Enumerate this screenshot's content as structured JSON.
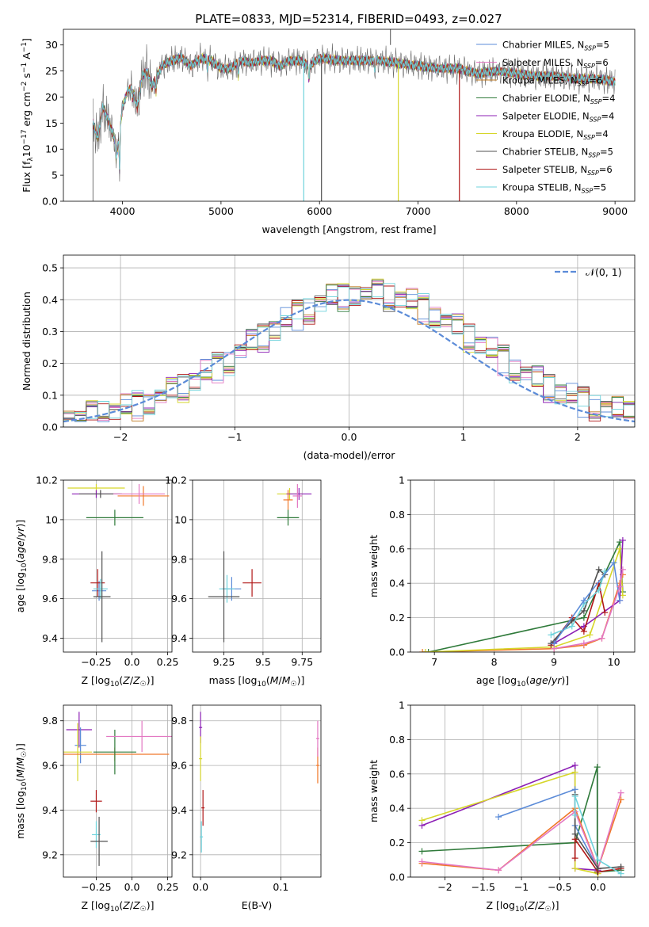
{
  "colors": {
    "Chabrier MILES": "#5b8bd8",
    "Salpeter MILES": "#e377c2",
    "Kroupa MILES": "#c07a20",
    "Chabrier ELODIE": "#2f7a3a",
    "Salpeter ELODIE": "#8c1fb5",
    "Kroupa ELODIE": "#d6d62a",
    "Chabrier STELIB": "#505050",
    "Salpeter STELIB": "#b01818",
    "Kroupa STELIB": "#6fd3dc",
    "orange": "#f0782a",
    "teal": "#5b7f6a",
    "purple": "#8c1fb5"
  },
  "chart_data": [
    {
      "type": "line",
      "title": "PLATE=0833, MJD=52314, FIBERID=0493, z=0.027",
      "xlabel": "wavelength [Angstrom, rest frame]",
      "ylabel": "Flux [f_λ10^-17 erg cm^-2 s^-1 A^-1]",
      "xlim": [
        3400,
        9200
      ],
      "ylim": [
        0,
        33
      ],
      "xticks": [
        4000,
        5000,
        6000,
        7000,
        8000,
        9000
      ],
      "yticks": [
        0,
        5,
        10,
        15,
        20,
        25,
        30
      ],
      "grid": false,
      "legend_position": "top-right",
      "legend": [
        {
          "base": "Chabrier MILES, N",
          "sub": "SSP",
          "tail": "=5"
        },
        {
          "base": "Salpeter MILES, N",
          "sub": "SSP",
          "tail": "=6"
        },
        {
          "base": "Kroupa MILES, N",
          "sub": "SSP",
          "tail": "=6"
        },
        {
          "base": "Chabrier ELODIE, N",
          "sub": "SSP",
          "tail": "=4"
        },
        {
          "base": "Salpeter ELODIE, N",
          "sub": "SSP",
          "tail": "=4"
        },
        {
          "base": "Kroupa ELODIE, N",
          "sub": "SSP",
          "tail": "=4"
        },
        {
          "base": "Chabrier STELIB, N",
          "sub": "SSP",
          "tail": "=5"
        },
        {
          "base": "Salpeter STELIB, N",
          "sub": "SSP",
          "tail": "=6"
        },
        {
          "base": "Kroupa STELIB, N",
          "sub": "SSP",
          "tail": "=5"
        }
      ],
      "spectrum_nodes": {
        "x": [
          3700,
          3750,
          3800,
          3850,
          3900,
          3950,
          4000,
          4050,
          4100,
          4150,
          4200,
          4250,
          4300,
          4350,
          4400,
          4500,
          4600,
          4700,
          4800,
          4900,
          5000,
          5100,
          5200,
          5300,
          5400,
          5500,
          5600,
          5700,
          5800,
          5900,
          6000,
          6200,
          6400,
          6600,
          6800,
          7000,
          7200,
          7400,
          7600,
          7800,
          8000,
          8200,
          8400,
          8600,
          8800,
          9000
        ],
        "y": [
          15,
          12,
          18,
          16,
          13,
          10,
          18,
          21,
          22,
          18,
          24,
          25,
          22,
          24,
          26,
          27,
          27.5,
          26,
          27.5,
          27,
          25.5,
          25.5,
          27,
          26.5,
          27,
          27,
          26,
          27,
          27,
          26,
          27.5,
          27,
          27,
          27,
          26.5,
          26,
          25.5,
          25.5,
          24.5,
          25,
          24.5,
          24,
          24,
          23.5,
          23.5,
          23
        ]
      },
      "spectrum_dips": [
        {
          "x": 3935,
          "y": 8
        },
        {
          "x": 3970,
          "y": 6
        },
        {
          "x": 4102,
          "y": 19
        },
        {
          "x": 4340,
          "y": 21
        },
        {
          "x": 4861,
          "y": 25
        },
        {
          "x": 5175,
          "y": 24
        },
        {
          "x": 5892,
          "y": 23
        },
        {
          "x": 6563,
          "y": 25
        }
      ],
      "artifacts": [
        {
          "series": "Kroupa STELIB",
          "x": 5840,
          "y": 0
        },
        {
          "series": "Chabrier STELIB",
          "x": 6020,
          "y": 0
        },
        {
          "series": "Kroupa ELODIE",
          "x": 6800,
          "y": 0
        },
        {
          "series": "Salpeter STELIB",
          "x": 7420,
          "y": 0
        }
      ]
    },
    {
      "type": "histogram",
      "xlabel": "(data-model)/error",
      "ylabel": "Normed distribution",
      "xlim": [
        -2.5,
        2.5
      ],
      "ylim": [
        0,
        0.54
      ],
      "xticks": [
        -2,
        -1,
        0,
        1,
        2
      ],
      "yticks": [
        0.0,
        0.1,
        0.2,
        0.3,
        0.4,
        0.5
      ],
      "grid": true,
      "bin_edges_start": -2.5,
      "bin_width": 0.1,
      "reference_curve": {
        "label": "𝒩(0, 1)",
        "mean": 0,
        "sigma": 1
      },
      "legend_position": "top-right",
      "noise": [
        0.012,
        -0.008,
        0.02,
        -0.015,
        0.005,
        0.018,
        -0.02,
        0.01,
        -0.005,
        0.025,
        -0.012,
        0.008,
        0.03,
        -0.025,
        0.015,
        -0.01,
        0.022,
        -0.018,
        0.004,
        0.028,
        -0.03,
        0.012,
        -0.006,
        0.019,
        -0.022
      ]
    },
    {
      "type": "errorbar",
      "xlabel": "Z [log10(Z/Z☉)]",
      "ylabel": "age  [log10(age/yr)]",
      "xlim": [
        -0.48,
        0.28
      ],
      "ylim": [
        9.33,
        10.2
      ],
      "xticks": [
        -0.25,
        0.0,
        0.25
      ],
      "yticks": [
        9.4,
        9.6,
        9.8,
        10.0,
        10.2
      ],
      "grid": true,
      "points": [
        {
          "series": "Kroupa ELODIE",
          "x": -0.25,
          "y": 10.16,
          "xerr": 0.2,
          "yerr": 0.02
        },
        {
          "series": "Salpeter ELODIE",
          "x": -0.25,
          "y": 10.13,
          "xerr": 0.17,
          "yerr": 0.02
        },
        {
          "series": "Chabrier STELIB",
          "x": -0.22,
          "y": 10.13,
          "xerr": 0.15,
          "yerr": 0.02
        },
        {
          "series": "orange",
          "x": 0.08,
          "y": 10.12,
          "xerr": 0.18,
          "yerr": 0.05
        },
        {
          "series": "Salpeter MILES",
          "x": 0.05,
          "y": 10.13,
          "xerr": 0.18,
          "yerr": 0.05
        },
        {
          "series": "Chabrier ELODIE",
          "x": -0.12,
          "y": 10.01,
          "xerr": 0.2,
          "yerr": 0.04
        },
        {
          "series": "Chabrier MILES",
          "x": -0.23,
          "y": 9.64,
          "xerr": 0.05,
          "yerr": 0.05
        },
        {
          "series": "Salpeter STELIB",
          "x": -0.24,
          "y": 9.68,
          "xerr": 0.05,
          "yerr": 0.07
        },
        {
          "series": "Kroupa STELIB",
          "x": -0.22,
          "y": 9.65,
          "xerr": 0.05,
          "yerr": 0.05
        },
        {
          "series": "Chabrier STELIB",
          "x": -0.21,
          "y": 9.61,
          "xerr": 0.06,
          "yerr": 0.23
        }
      ]
    },
    {
      "type": "errorbar",
      "xlabel": "mass [log10(M/M☉)]",
      "ylabel": "",
      "xlim": [
        9.05,
        9.87
      ],
      "ylim": [
        9.33,
        10.2
      ],
      "xticks": [
        9.25,
        9.5,
        9.75
      ],
      "yticks": [
        9.4,
        9.6,
        9.8,
        10.0,
        10.2
      ],
      "grid": true,
      "points": [
        {
          "series": "Kroupa ELODIE",
          "x": 9.67,
          "y": 10.13,
          "xerr": 0.08,
          "yerr": 0.03
        },
        {
          "series": "Salpeter ELODIE",
          "x": 9.73,
          "y": 10.13,
          "xerr": 0.08,
          "yerr": 0.03
        },
        {
          "series": "Salpeter MILES",
          "x": 9.72,
          "y": 10.12,
          "xerr": 0.03,
          "yerr": 0.06
        },
        {
          "series": "orange",
          "x": 9.66,
          "y": 10.1,
          "xerr": 0.03,
          "yerr": 0.05
        },
        {
          "series": "Chabrier ELODIE",
          "x": 9.66,
          "y": 10.01,
          "xerr": 0.07,
          "yerr": 0.04
        },
        {
          "series": "Chabrier MILES",
          "x": 9.3,
          "y": 9.65,
          "xerr": 0.06,
          "yerr": 0.06
        },
        {
          "series": "Kroupa STELIB",
          "x": 9.27,
          "y": 9.65,
          "xerr": 0.05,
          "yerr": 0.07
        },
        {
          "series": "Salpeter STELIB",
          "x": 9.43,
          "y": 9.68,
          "xerr": 0.06,
          "yerr": 0.07
        },
        {
          "series": "Chabrier STELIB",
          "x": 9.25,
          "y": 9.61,
          "xerr": 0.1,
          "yerr": 0.23
        }
      ]
    },
    {
      "type": "line",
      "xlabel": "age  [log10(age/yr)]",
      "ylabel": "mass weight",
      "xlim": [
        6.6,
        10.35
      ],
      "ylim": [
        0,
        1
      ],
      "xticks": [
        7,
        8,
        9,
        10
      ],
      "yticks": [
        0.0,
        0.2,
        0.4,
        0.6,
        0.8,
        1.0
      ],
      "grid": true,
      "series": [
        {
          "color": "Chabrier ELODIE",
          "x": [
            6.9,
            9.5,
            10.1,
            10.15
          ],
          "y": [
            0.0,
            0.2,
            0.64,
            0.35
          ]
        },
        {
          "color": "orange",
          "x": [
            6.8,
            9.0,
            9.5,
            9.8,
            10.1,
            10.15
          ],
          "y": [
            0.0,
            0.02,
            0.04,
            0.08,
            0.4,
            0.45
          ]
        },
        {
          "color": "Kroupa ELODIE",
          "x": [
            6.85,
            9.0,
            9.6,
            10.1,
            10.15
          ],
          "y": [
            0.0,
            0.03,
            0.1,
            0.6,
            0.33
          ]
        },
        {
          "color": "Salpeter ELODIE",
          "x": [
            9.0,
            9.5,
            10.1,
            10.15
          ],
          "y": [
            0.05,
            0.15,
            0.3,
            0.65
          ]
        },
        {
          "color": "Salpeter STELIB",
          "x": [
            8.95,
            9.3,
            9.5,
            9.75,
            9.85
          ],
          "y": [
            0.04,
            0.2,
            0.12,
            0.4,
            0.23
          ]
        },
        {
          "color": "Chabrier STELIB",
          "x": [
            8.95,
            9.3,
            9.5,
            9.75,
            9.85
          ],
          "y": [
            0.05,
            0.18,
            0.24,
            0.48,
            0.45
          ]
        },
        {
          "color": "Kroupa STELIB",
          "x": [
            8.95,
            9.3,
            9.5,
            9.75,
            9.85
          ],
          "y": [
            0.1,
            0.15,
            0.28,
            0.36,
            0.47
          ]
        },
        {
          "color": "Chabrier MILES",
          "x": [
            9.0,
            9.5,
            10.0,
            10.1
          ],
          "y": [
            0.05,
            0.3,
            0.52,
            0.3
          ]
        },
        {
          "color": "Salpeter MILES",
          "x": [
            9.0,
            9.5,
            9.8,
            10.1,
            10.15
          ],
          "y": [
            0.02,
            0.05,
            0.08,
            0.38,
            0.48
          ]
        }
      ]
    },
    {
      "type": "errorbar",
      "xlabel": "Z [log10(Z/Z☉)]",
      "ylabel": "mass [log10(M/M☉)]",
      "xlim": [
        -0.48,
        0.28
      ],
      "ylim": [
        9.1,
        9.87
      ],
      "xticks": [
        -0.25,
        0.0,
        0.25
      ],
      "yticks": [
        9.2,
        9.4,
        9.6,
        9.8
      ],
      "grid": true,
      "points": [
        {
          "series": "Salpeter ELODIE",
          "x": -0.37,
          "y": 9.76,
          "xerr": 0.09,
          "yerr": 0.08
        },
        {
          "series": "Chabrier MILES",
          "x": -0.36,
          "y": 9.69,
          "xerr": 0.04,
          "yerr": 0.08
        },
        {
          "series": "Kroupa ELODIE",
          "x": -0.38,
          "y": 9.66,
          "xerr": 0.1,
          "yerr": 0.13
        },
        {
          "series": "orange",
          "x": -0.12,
          "y": 9.65,
          "xerr": 0.38,
          "yerr": 0.03
        },
        {
          "series": "Chabrier ELODIE",
          "x": -0.12,
          "y": 9.66,
          "xerr": 0.15,
          "yerr": 0.1
        },
        {
          "series": "Salpeter MILES",
          "x": 0.07,
          "y": 9.73,
          "xerr": 0.25,
          "yerr": 0.07
        },
        {
          "series": "Salpeter STELIB",
          "x": -0.25,
          "y": 9.44,
          "xerr": 0.04,
          "yerr": 0.05
        },
        {
          "series": "Kroupa STELIB",
          "x": -0.25,
          "y": 9.29,
          "xerr": 0.03,
          "yerr": 0.06
        },
        {
          "series": "Chabrier STELIB",
          "x": -0.23,
          "y": 9.26,
          "xerr": 0.06,
          "yerr": 0.11
        }
      ]
    },
    {
      "type": "errorbar",
      "xlabel": "E(B-V)",
      "ylabel": "",
      "xlim": [
        -0.01,
        0.15
      ],
      "ylim": [
        9.1,
        9.87
      ],
      "xticks": [
        0.0,
        0.1
      ],
      "yticks": [
        9.2,
        9.4,
        9.6,
        9.8
      ],
      "grid": true,
      "points": [
        {
          "series": "Salpeter ELODIE",
          "x": 0.0,
          "y": 9.77,
          "xerr": 0.0,
          "yerr": 0.07
        },
        {
          "series": "Kroupa ELODIE",
          "x": 0.0,
          "y": 9.63,
          "xerr": 0.0,
          "yerr": 0.1
        },
        {
          "series": "orange",
          "x": 0.146,
          "y": 9.6,
          "xerr": 0.0,
          "yerr": 0.08
        },
        {
          "series": "Salpeter MILES",
          "x": 0.146,
          "y": 9.72,
          "xerr": 0.0,
          "yerr": 0.08
        },
        {
          "series": "Salpeter STELIB",
          "x": 0.003,
          "y": 9.41,
          "xerr": 0.0,
          "yerr": 0.08
        },
        {
          "series": "Kroupa STELIB",
          "x": 0.001,
          "y": 9.28,
          "xerr": 0.0,
          "yerr": 0.07
        }
      ]
    },
    {
      "type": "line",
      "xlabel": "Z [log10(Z/Z☉)]",
      "ylabel": "mass weight",
      "xlim": [
        -2.45,
        0.48
      ],
      "ylim": [
        0,
        1
      ],
      "xticks": [
        -2.0,
        -1.5,
        -1.0,
        -0.5,
        0.0
      ],
      "yticks": [
        0.0,
        0.2,
        0.4,
        0.6,
        0.8,
        1.0
      ],
      "grid": true,
      "series": [
        {
          "color": "Salpeter ELODIE",
          "x": [
            -2.3,
            -0.3,
            -0.3,
            0.0
          ],
          "y": [
            0.3,
            0.65,
            0.05,
            0.04
          ]
        },
        {
          "color": "Kroupa ELODIE",
          "x": [
            -2.3,
            -0.3,
            -0.3,
            0.0
          ],
          "y": [
            0.33,
            0.61,
            0.05,
            0.02
          ]
        },
        {
          "color": "Chabrier ELODIE",
          "x": [
            -2.3,
            -0.3,
            -0.01,
            -0.01,
            0.3
          ],
          "y": [
            0.15,
            0.2,
            0.64,
            0.03,
            0.04
          ]
        },
        {
          "color": "Chabrier MILES",
          "x": [
            -1.3,
            -0.3,
            -0.3,
            0.0
          ],
          "y": [
            0.35,
            0.51,
            0.3,
            0.05
          ]
        },
        {
          "color": "orange",
          "x": [
            -2.3,
            -1.3,
            -0.3,
            0.0,
            0.3
          ],
          "y": [
            0.08,
            0.04,
            0.4,
            0.05,
            0.45
          ]
        },
        {
          "color": "Salpeter MILES",
          "x": [
            -2.3,
            -1.3,
            -0.3,
            0.0,
            0.3
          ],
          "y": [
            0.09,
            0.04,
            0.38,
            0.05,
            0.49
          ]
        },
        {
          "color": "Salpeter STELIB",
          "x": [
            -0.3,
            -0.3,
            0.0,
            0.3
          ],
          "y": [
            0.11,
            0.22,
            0.03,
            0.05
          ]
        },
        {
          "color": "Chabrier STELIB",
          "x": [
            -0.3,
            -0.3,
            0.0,
            0.3
          ],
          "y": [
            0.48,
            0.25,
            0.05,
            0.06
          ]
        },
        {
          "color": "Kroupa STELIB",
          "x": [
            -0.3,
            -0.3,
            0.0,
            0.3
          ],
          "y": [
            0.36,
            0.47,
            0.1,
            0.02
          ]
        }
      ]
    }
  ]
}
